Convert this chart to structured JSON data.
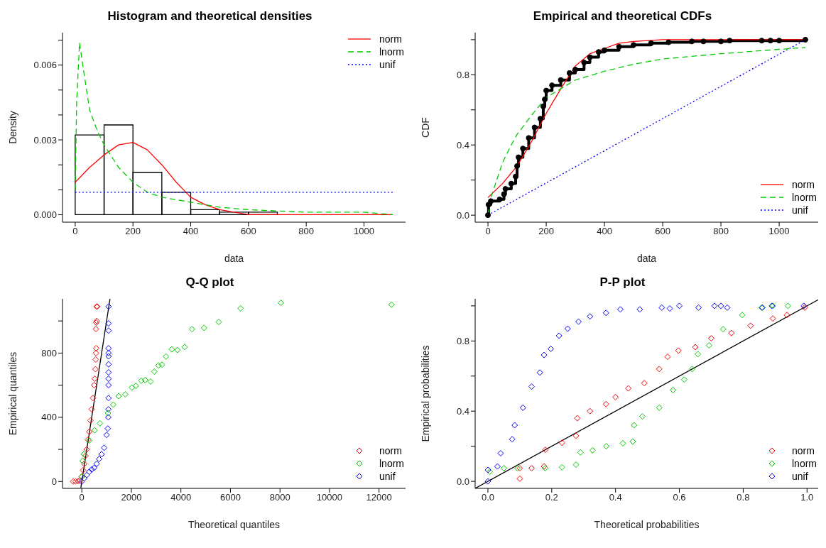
{
  "chart_data": [
    {
      "type": "histogram",
      "title": "Histogram and theoretical densities",
      "xlabel": "data",
      "ylabel": "Density",
      "legend": "top right",
      "color": "#000000",
      "bins": [
        0,
        100,
        200,
        300,
        400,
        500,
        600,
        700
      ],
      "values": [
        0.0032,
        0.0036,
        0.0017,
        0.0009,
        0.0002,
        0.0001,
        0.0001
      ],
      "xlim": [
        -44,
        1144
      ],
      "ylim": [
        -0.0003,
        0.0073
      ],
      "xticks": [
        0,
        200,
        400,
        600,
        800,
        1000
      ],
      "yticks": [
        {
          "value": 0,
          "label": "0.000"
        },
        {
          "value": 0.001,
          "label": null
        },
        {
          "value": 0.002,
          "label": null
        },
        {
          "value": 0.003,
          "label": "0.003"
        },
        {
          "value": 0.004,
          "label": null
        },
        {
          "value": 0.005,
          "label": null
        },
        {
          "value": 0.006,
          "label": "0.006"
        },
        {
          "value": 0.007,
          "label": null
        }
      ],
      "series": [
        {
          "name": "norm",
          "type": "line",
          "color": "#ff0000",
          "line_style": "solid",
          "x": [
            0,
            50,
            100,
            150,
            200,
            250,
            300,
            350,
            400,
            450,
            500,
            550,
            600,
            700,
            800,
            900,
            1000,
            1100
          ],
          "values": [
            0.0013,
            0.0019,
            0.0024,
            0.0028,
            0.0029,
            0.0026,
            0.002,
            0.0013,
            0.0007,
            0.0004,
            0.0002,
            0.0001,
            0,
            0,
            0,
            0,
            0,
            0
          ]
        },
        {
          "name": "lnorm",
          "type": "line",
          "color": "#00cc00",
          "line_style": "dashed",
          "x": [
            0,
            5,
            15,
            30,
            50,
            75,
            100,
            150,
            200,
            250,
            300,
            400,
            500,
            600,
            800,
            1000,
            1100
          ],
          "values": [
            0.001,
            0.0045,
            0.0069,
            0.0057,
            0.0042,
            0.0034,
            0.0028,
            0.0019,
            0.0013,
            0.0009,
            0.0007,
            0.0005,
            0.0003,
            0.0002,
            0.0001,
            0.0001,
            0
          ]
        },
        {
          "name": "unif",
          "type": "line",
          "color": "#0000ff",
          "line_style": "dotted",
          "x": [
            0,
            1100
          ],
          "values": [
            0.0009,
            0.0009
          ]
        }
      ]
    },
    {
      "type": "step",
      "title": "Empirical and theoretical CDFs",
      "xlabel": "data",
      "ylabel": "CDF",
      "legend": "bottom right",
      "xlim": [
        -44,
        1134
      ],
      "ylim": [
        -0.04,
        1.04
      ],
      "xticks": [
        0,
        200,
        400,
        600,
        800,
        1000
      ],
      "yticks": [
        {
          "value": 0,
          "label": "0.0"
        },
        {
          "value": 0.2,
          "label": null
        },
        {
          "value": 0.4,
          "label": "0.4"
        },
        {
          "value": 0.6,
          "label": null
        },
        {
          "value": 0.8,
          "label": "0.8"
        },
        {
          "value": 1,
          "label": null
        }
      ],
      "series": [
        {
          "color": "#000000",
          "marker": "circle",
          "x": [
            0,
            2,
            10,
            40,
            55,
            60,
            80,
            95,
            100,
            105,
            120,
            140,
            160,
            180,
            190,
            195,
            200,
            220,
            250,
            280,
            300,
            330,
            350,
            380,
            400,
            450,
            500,
            560,
            620,
            700,
            740,
            800,
            830,
            940,
            970,
            1000,
            1090
          ],
          "values": [
            0,
            0.06,
            0.08,
            0.09,
            0.12,
            0.15,
            0.18,
            0.22,
            0.28,
            0.33,
            0.38,
            0.44,
            0.5,
            0.55,
            0.62,
            0.66,
            0.71,
            0.74,
            0.77,
            0.81,
            0.83,
            0.87,
            0.9,
            0.93,
            0.94,
            0.96,
            0.97,
            0.98,
            0.985,
            0.99,
            0.99,
            0.99,
            0.995,
            0.995,
            0.995,
            0.995,
            1
          ]
        },
        {
          "name": "norm",
          "type": "line",
          "color": "#ff0000",
          "line_style": "solid",
          "x": [
            0,
            50,
            100,
            150,
            200,
            250,
            300,
            350,
            400,
            450,
            500,
            600,
            1090
          ],
          "values": [
            0.1,
            0.18,
            0.28,
            0.42,
            0.58,
            0.72,
            0.85,
            0.92,
            0.95,
            0.98,
            0.99,
            1,
            1
          ]
        },
        {
          "name": "lnorm",
          "type": "line",
          "color": "#00cc00",
          "line_style": "dashed",
          "x": [
            0,
            10,
            50,
            80,
            100,
            150,
            200,
            250,
            300,
            400,
            500,
            600,
            800,
            1000,
            1090
          ],
          "values": [
            0,
            0.1,
            0.3,
            0.4,
            0.46,
            0.57,
            0.67,
            0.72,
            0.77,
            0.82,
            0.86,
            0.89,
            0.92,
            0.945,
            0.955
          ]
        },
        {
          "name": "unif",
          "type": "line",
          "color": "#0000ff",
          "line_style": "dotted",
          "x": [
            0,
            1090
          ],
          "values": [
            0,
            1
          ]
        }
      ]
    },
    {
      "type": "scatter",
      "title": "Q-Q plot",
      "xlabel": "Theoretical quantiles",
      "ylabel": "Empirical quantiles",
      "legend": "bottom right",
      "xlim": [
        -780,
        13070
      ],
      "ylim": [
        -43,
        1138
      ],
      "xticks": [
        0,
        2000,
        4000,
        6000,
        8000,
        10000,
        12000
      ],
      "yticks": [
        0,
        {
          "value": 200,
          "label": null
        },
        400,
        {
          "value": 600,
          "label": null
        },
        800,
        {
          "value": 1000,
          "label": null
        }
      ],
      "series": [
        {
          "name": "norm",
          "color": "#ff0000",
          "marker": "diamond",
          "x": [
            -350,
            -250,
            -150,
            -80,
            0,
            50,
            100,
            150,
            200,
            250,
            300,
            350,
            400,
            450,
            500,
            520,
            550,
            560,
            570,
            580,
            570,
            580,
            600,
            600,
            620
          ],
          "values": [
            0,
            0,
            2,
            5,
            30,
            70,
            110,
            160,
            200,
            260,
            310,
            380,
            450,
            520,
            600,
            640,
            700,
            760,
            800,
            830,
            950,
            990,
            1000,
            1090,
            1090
          ]
        },
        {
          "name": "lnorm",
          "color": "#00cc00",
          "marker": "diamond",
          "x": [
            0,
            32,
            86,
            301,
            516,
            731,
            1054,
            1269,
            1484,
            1753,
            2021,
            2183,
            2398,
            2559,
            2774,
            2925,
            3097,
            3237,
            3398,
            3634,
            3860,
            4150,
            4452,
            4935,
            5527,
            6409,
            8043,
            12505
          ],
          "values": [
            30,
            128,
            170,
            255,
            319,
            362,
            426,
            479,
            532,
            543,
            585,
            596,
            628,
            632,
            623,
            685,
            723,
            728,
            779,
            823,
            819,
            838,
            949,
            957,
            994,
            1079,
            1113,
            1102
          ]
        },
        {
          "name": "unif",
          "color": "#0000ff",
          "marker": "diamond",
          "x": [
            0,
            100,
            200,
            300,
            400,
            500,
            600,
            700,
            800,
            900,
            1000,
            1050,
            1070,
            1075,
            1080,
            1080,
            1080,
            1080,
            1080,
            1080,
            1080,
            1080,
            1080,
            1080,
            1080
          ],
          "values": [
            0,
            20,
            40,
            60,
            75,
            85,
            110,
            140,
            170,
            210,
            290,
            330,
            400,
            450,
            520,
            600,
            640,
            680,
            730,
            780,
            800,
            830,
            940,
            985,
            1090
          ]
        },
        {
          "type": "line",
          "color": "#000000",
          "x": [
            -40,
            1138
          ],
          "values": [
            -40,
            1138
          ]
        }
      ]
    },
    {
      "type": "scatter",
      "title": "P-P plot",
      "xlabel": "Theoretical probabilities",
      "ylabel": "Empirical probabilities",
      "legend": "bottom right",
      "xlim": [
        -0.04,
        1.035
      ],
      "ylim": [
        -0.04,
        1.04
      ],
      "xticks": [
        {
          "value": 0,
          "label": "0.0"
        },
        {
          "value": 0.2,
          "label": "0.2"
        },
        {
          "value": 0.4,
          "label": "0.4"
        },
        {
          "value": 0.6,
          "label": "0.6"
        },
        {
          "value": 0.8,
          "label": "0.8"
        },
        {
          "value": 1,
          "label": "1.0"
        }
      ],
      "yticks": [
        {
          "value": 0,
          "label": "0.0"
        },
        {
          "value": 0.2,
          "label": null
        },
        {
          "value": 0.4,
          "label": "0.4"
        },
        {
          "value": 0.6,
          "label": null
        },
        {
          "value": 0.8,
          "label": "0.8"
        },
        {
          "value": 1,
          "label": null
        }
      ],
      "series": [
        {
          "name": "norm",
          "color": "#ff0000",
          "marker": "diamond",
          "x": [
            0.1,
            0.1,
            0.137,
            0.176,
            0.18,
            0.232,
            0.276,
            0.28,
            0.32,
            0.37,
            0.4,
            0.44,
            0.49,
            0.537,
            0.563,
            0.597,
            0.65,
            0.7,
            0.763,
            0.823,
            0.893,
            0.937,
            0.993
          ],
          "values": [
            0.015,
            0.075,
            0.075,
            0.085,
            0.18,
            0.22,
            0.26,
            0.36,
            0.4,
            0.44,
            0.48,
            0.53,
            0.56,
            0.64,
            0.71,
            0.745,
            0.765,
            0.815,
            0.845,
            0.887,
            0.928,
            0.948,
            0.99
          ]
        },
        {
          "name": "lnorm",
          "color": "#00cc00",
          "marker": "diamond",
          "x": [
            0.006,
            0.05,
            0.093,
            0.18,
            0.232,
            0.276,
            0.29,
            0.328,
            0.371,
            0.423,
            0.454,
            0.458,
            0.484,
            0.537,
            0.58,
            0.615,
            0.64,
            0.658,
            0.693,
            0.737,
            0.797,
            0.858,
            0.893,
            0.94
          ],
          "values": [
            0.055,
            0.075,
            0.075,
            0.075,
            0.08,
            0.095,
            0.165,
            0.177,
            0.2,
            0.217,
            0.227,
            0.32,
            0.37,
            0.42,
            0.52,
            0.58,
            0.64,
            0.725,
            0.775,
            0.867,
            0.948,
            0.99,
            1,
            1
          ]
        },
        {
          "name": "unif",
          "color": "#0000ff",
          "marker": "diamond",
          "x": [
            0,
            0,
            0.03,
            0.04,
            0.076,
            0.084,
            0.11,
            0.137,
            0.163,
            0.176,
            0.197,
            0.223,
            0.25,
            0.284,
            0.32,
            0.37,
            0.415,
            0.476,
            0.545,
            0.57,
            0.6,
            0.66,
            0.71,
            0.73,
            0.75,
            0.86,
            0.89,
            0.99
          ],
          "values": [
            0,
            0.065,
            0.085,
            0.16,
            0.24,
            0.32,
            0.42,
            0.54,
            0.62,
            0.72,
            0.755,
            0.83,
            0.87,
            0.91,
            0.94,
            0.96,
            0.98,
            0.98,
            0.99,
            0.985,
            1,
            0.99,
            1,
            1,
            0.99,
            0.99,
            1,
            1
          ]
        },
        {
          "type": "line",
          "color": "#000000",
          "x": [
            -0.04,
            1.035
          ],
          "values": [
            -0.04,
            1.035
          ]
        }
      ]
    }
  ]
}
